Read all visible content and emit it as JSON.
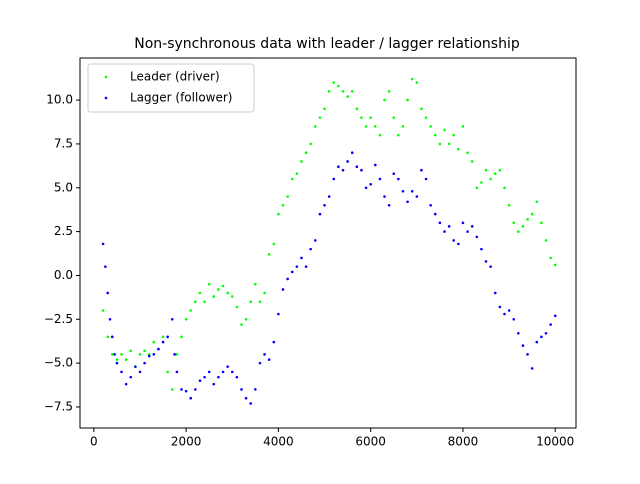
{
  "chart_data": {
    "type": "scatter",
    "title": "Non-synchronous data with leader / lagger relationship",
    "xlim": [
      -300,
      10450
    ],
    "ylim": [
      -8.7,
      12.4
    ],
    "xticks": [
      0,
      2000,
      4000,
      6000,
      8000,
      10000
    ],
    "yticks": [
      {
        "value": -7.5,
        "label": "−7.5"
      },
      {
        "value": -5,
        "label": "−5.0"
      },
      {
        "value": -2.5,
        "label": "−2.5"
      },
      {
        "value": 0,
        "label": "0.0"
      },
      {
        "value": 2.5,
        "label": "2.5"
      },
      {
        "value": 5,
        "label": "5.0"
      },
      {
        "value": 7.5,
        "label": "7.5"
      },
      {
        "value": 10,
        "label": "10.0"
      }
    ],
    "legend": "upper left",
    "series": [
      {
        "name": "Leader (driver)",
        "color": "#00ff00",
        "x": [
          200,
          300,
          400,
          500,
          600,
          700,
          800,
          900,
          1000,
          1100,
          1200,
          1300,
          1400,
          1500,
          1600,
          1700,
          1800,
          1900,
          2000,
          2100,
          2200,
          2300,
          2400,
          2500,
          2600,
          2700,
          2800,
          2900,
          3000,
          3100,
          3200,
          3300,
          3400,
          3500,
          3600,
          3700,
          3800,
          3900,
          4000,
          4100,
          4200,
          4300,
          4400,
          4500,
          4600,
          4700,
          4800,
          4900,
          5000,
          5100,
          5200,
          5300,
          5400,
          5500,
          5600,
          5700,
          5800,
          5900,
          6000,
          6100,
          6200,
          6300,
          6400,
          6500,
          6600,
          6700,
          6800,
          6900,
          7000,
          7100,
          7200,
          7300,
          7400,
          7500,
          7600,
          7700,
          7800,
          7900,
          8000,
          8100,
          8200,
          8300,
          8400,
          8500,
          8600,
          8700,
          8800,
          8900,
          9000,
          9100,
          9200,
          9300,
          9400,
          9500,
          9600,
          9700,
          9800,
          9900,
          10000
        ],
        "values": [
          -2,
          -3.5,
          -4.5,
          -4.8,
          -4.5,
          -4.8,
          -4.3,
          -5.2,
          -4.5,
          -4.3,
          -4.5,
          -3.8,
          -4.2,
          -3.5,
          -5.5,
          -6.5,
          -4.5,
          -3.5,
          -2.5,
          -2,
          -1.5,
          -1,
          -1.5,
          -0.5,
          -1.2,
          -0.8,
          -0.6,
          -1,
          -1.2,
          -1.8,
          -2.8,
          -2.5,
          -1.5,
          -0.5,
          -1.5,
          -1,
          1.2,
          1.8,
          3.5,
          4,
          4.5,
          5.5,
          5.8,
          6.5,
          7,
          7.5,
          8.5,
          9,
          9.5,
          10.5,
          11,
          10.8,
          10.5,
          10.2,
          10.5,
          9.5,
          9,
          8.5,
          9,
          8.5,
          8,
          10,
          10.5,
          9,
          8,
          8.5,
          10,
          11.2,
          11,
          9.5,
          9,
          8.5,
          8,
          7.5,
          8.3,
          7.5,
          8,
          7.2,
          8.5,
          7,
          6.5,
          5,
          5.3,
          6,
          5.5,
          5.8,
          6,
          5,
          4,
          3,
          2.5,
          2.8,
          3.2,
          3.5,
          4.2,
          3,
          2,
          1,
          0.6
        ]
      },
      {
        "name": "Lagger (follower)",
        "color": "#0000ff",
        "x": [
          200,
          250,
          300,
          350,
          400,
          450,
          500,
          600,
          700,
          800,
          900,
          1000,
          1100,
          1200,
          1300,
          1400,
          1500,
          1600,
          1700,
          1750,
          1800,
          1900,
          2000,
          2100,
          2200,
          2300,
          2400,
          2500,
          2600,
          2700,
          2800,
          2900,
          3000,
          3100,
          3200,
          3300,
          3400,
          3500,
          3600,
          3700,
          3800,
          3900,
          4000,
          4100,
          4200,
          4300,
          4400,
          4500,
          4600,
          4700,
          4800,
          4900,
          5000,
          5100,
          5200,
          5300,
          5400,
          5500,
          5600,
          5700,
          5800,
          5900,
          6000,
          6100,
          6200,
          6300,
          6400,
          6500,
          6600,
          6700,
          6800,
          6900,
          7000,
          7100,
          7200,
          7300,
          7400,
          7500,
          7600,
          7700,
          7800,
          7900,
          8000,
          8100,
          8200,
          8300,
          8400,
          8500,
          8600,
          8700,
          8800,
          8900,
          9000,
          9100,
          9200,
          9300,
          9400,
          9500,
          9600,
          9700,
          9800,
          9900,
          10000
        ],
        "values": [
          1.8,
          0.5,
          -1,
          -2.5,
          -3.5,
          -4.5,
          -5,
          -5.5,
          -6.2,
          -5.8,
          -5.2,
          -5.5,
          -5,
          -4.6,
          -4.5,
          -4.2,
          -3.8,
          -3.5,
          -2.5,
          -4.5,
          -5.5,
          -6.5,
          -6.6,
          -7,
          -6.5,
          -6,
          -5.8,
          -5.5,
          -6.2,
          -5.8,
          -5.5,
          -5.2,
          -5.5,
          -5.8,
          -6.5,
          -7,
          -7.3,
          -6.5,
          -5,
          -4.5,
          -4.8,
          -3.8,
          -2.2,
          -0.8,
          -0.2,
          0.2,
          0.5,
          1,
          0.5,
          1.5,
          2,
          3.5,
          4,
          4.5,
          5.5,
          6.2,
          6,
          6.5,
          7,
          6.2,
          6,
          5,
          5.2,
          6.3,
          5.5,
          4.5,
          4,
          5.8,
          5.5,
          4.8,
          4.2,
          4.8,
          4.5,
          6,
          5.5,
          4,
          3.5,
          3,
          2.5,
          2.8,
          2,
          1.8,
          3,
          2.5,
          2.8,
          2.2,
          1.5,
          0.8,
          0.5,
          -1,
          -1.8,
          -2.2,
          -2,
          -2.5,
          -3.3,
          -4,
          -4.5,
          -5.3,
          -3.8,
          -3.5,
          -3.3,
          -2.8,
          -2.3
        ]
      }
    ]
  }
}
